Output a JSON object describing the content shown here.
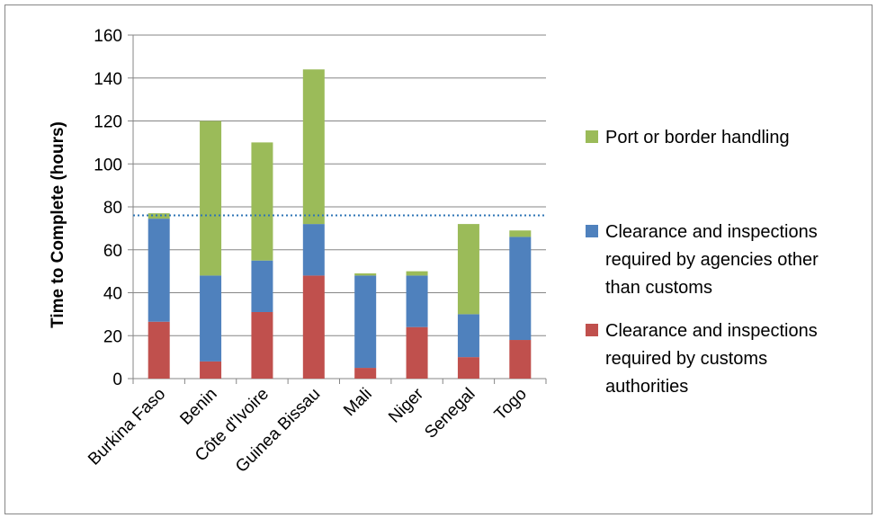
{
  "chart_data": {
    "type": "bar",
    "stacked": true,
    "title": "",
    "xlabel": "",
    "ylabel": "Time to Complete (hours)",
    "ylim": [
      0,
      160
    ],
    "yticks": [
      0,
      20,
      40,
      60,
      80,
      100,
      120,
      140,
      160
    ],
    "grid": true,
    "legend_position": "right",
    "reference_line": {
      "value": 76,
      "style": "dotted",
      "color": "#2E75B6"
    },
    "categories": [
      "Burkina Faso",
      "Benin",
      "Côte d'Ivoire",
      "Guinea Bissau",
      "Mali",
      "Niger",
      "Senegal",
      "Togo"
    ],
    "series": [
      {
        "name": "Clearance and inspections required by customs authorities",
        "color": "#C0504D",
        "values": [
          26.5,
          8,
          31,
          48,
          5,
          24,
          10,
          18
        ]
      },
      {
        "name": "Clearance and inspections required by agencies other than customs",
        "color": "#4F81BD",
        "values": [
          48,
          40,
          24,
          24,
          43,
          24,
          20,
          48
        ]
      },
      {
        "name": "Port or border handling",
        "color": "#9BBB59",
        "values": [
          2.5,
          72,
          55,
          72,
          1,
          2,
          42,
          3
        ]
      }
    ],
    "legend_order": [
      2,
      1,
      0
    ],
    "legend_lines": [
      [
        "Port or border handling"
      ],
      [
        "Clearance and inspections",
        "required by agencies other",
        "than customs"
      ],
      [
        "Clearance and inspections",
        "required by customs",
        "authorities"
      ]
    ]
  }
}
